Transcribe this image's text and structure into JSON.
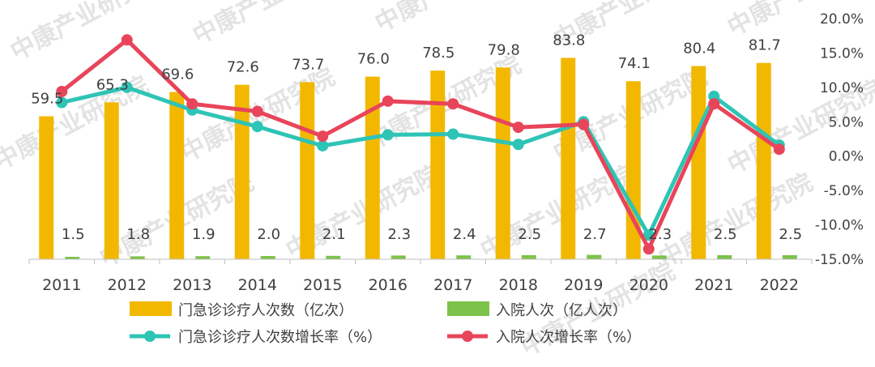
{
  "chart_data": {
    "type": "bar+line",
    "categories": [
      "2011",
      "2012",
      "2013",
      "2014",
      "2015",
      "2016",
      "2017",
      "2018",
      "2019",
      "2020",
      "2021",
      "2022"
    ],
    "bar_series": [
      {
        "name": "门急诊诊疗人次数（亿次）",
        "color": "#F2B800",
        "values": [
          59.5,
          65.3,
          69.6,
          72.6,
          73.7,
          76.0,
          78.5,
          79.8,
          83.8,
          74.1,
          80.4,
          81.7
        ],
        "labels": [
          "59.5",
          "65.3",
          "69.6",
          "72.6",
          "73.7",
          "76.0",
          "78.5",
          "79.8",
          "83.8",
          "74.1",
          "80.4",
          "81.7"
        ]
      },
      {
        "name": "入院人次（亿人次）",
        "color": "#7DC24B",
        "values": [
          1.5,
          1.8,
          1.9,
          2.0,
          2.1,
          2.3,
          2.4,
          2.5,
          2.7,
          2.3,
          2.5,
          2.5
        ],
        "labels": [
          "1.5",
          "1.8",
          "1.9",
          "2.0",
          "2.1",
          "2.3",
          "2.4",
          "2.5",
          "2.7",
          "2.3",
          "2.5",
          "2.5"
        ]
      }
    ],
    "line_series": [
      {
        "name": "门急诊诊疗人次数增长率（%）",
        "color": "#2EC4B6",
        "values": [
          7.8,
          10.0,
          6.7,
          4.3,
          1.5,
          3.1,
          3.2,
          1.7,
          5.0,
          -11.5,
          8.7,
          1.6
        ]
      },
      {
        "name": "入院人次增长率（%）",
        "color": "#E8455A",
        "values": [
          9.4,
          16.9,
          7.6,
          6.5,
          2.9,
          8.0,
          7.6,
          4.2,
          4.6,
          -13.5,
          7.6,
          1.0
        ]
      }
    ],
    "right_axis": {
      "ylim": [
        -15,
        20
      ],
      "ticks": [
        "20.0%",
        "15.0%",
        "10.0%",
        "5.0%",
        "0.0%",
        "-5.0%",
        "-10.0%",
        "-15.0%"
      ]
    },
    "watermark": "中康产业研究院",
    "grid": false,
    "legend_position": "bottom"
  }
}
